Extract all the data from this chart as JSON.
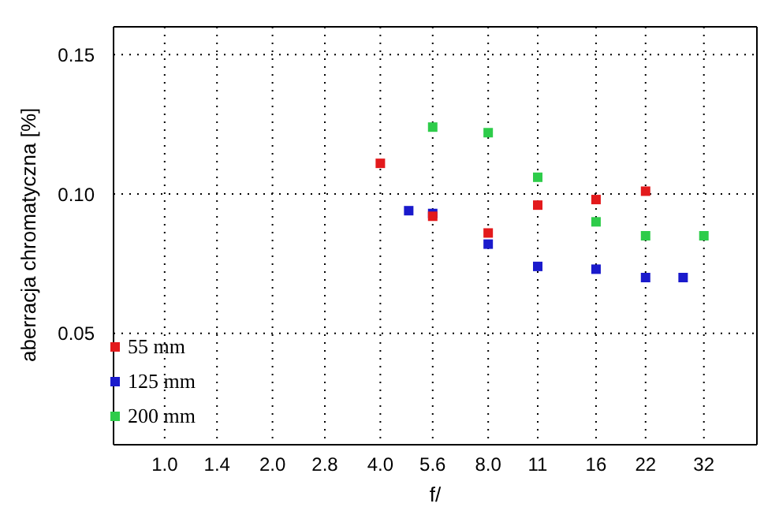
{
  "chart_data": {
    "type": "scatter",
    "xlabel": "f/",
    "ylabel": "aberracja chromatyczna [%]",
    "log": "x",
    "xlim": [
      0.72,
      45
    ],
    "xticks": [
      {
        "value": 1,
        "label": "1.0"
      },
      1.4,
      {
        "value": 2,
        "label": "2.0"
      },
      2.8,
      {
        "value": 4,
        "label": "4.0"
      },
      5.6,
      {
        "value": 8,
        "label": "8.0"
      },
      11,
      16,
      22,
      32
    ],
    "ylim": [
      0.01,
      0.16
    ],
    "yticks": [
      0.05,
      {
        "value": 0.1,
        "label": "0.10"
      },
      0.15
    ],
    "grid": true,
    "legend": "bottom left",
    "marker": "square",
    "series": [
      {
        "name": "55 mm",
        "color": "#e31a1c",
        "x": [
          4,
          5.6,
          8,
          11,
          16,
          22
        ],
        "values": [
          0.111,
          0.092,
          0.086,
          0.096,
          0.098,
          0.101
        ]
      },
      {
        "name": "125 mm",
        "color": "#1a1acc",
        "x": [
          4.8,
          5.6,
          8,
          11,
          16,
          22,
          28
        ],
        "values": [
          0.094,
          0.093,
          0.082,
          0.074,
          0.073,
          0.07,
          0.07
        ]
      },
      {
        "name": "200 mm",
        "color": "#2ecc4a",
        "x": [
          5.6,
          8,
          11,
          16,
          22,
          32
        ],
        "values": [
          0.124,
          0.122,
          0.106,
          0.09,
          0.085,
          0.085
        ]
      }
    ]
  }
}
